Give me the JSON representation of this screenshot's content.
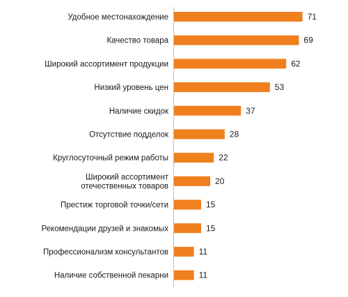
{
  "chart_data": {
    "type": "bar",
    "orientation": "horizontal",
    "title": "",
    "xlabel": "",
    "ylabel": "",
    "xlim": [
      0,
      75
    ],
    "grid": false,
    "legend": "none",
    "bar_color": "#F0801E",
    "categories": [
      [
        "Удобное местонахождение"
      ],
      [
        "Качество товара"
      ],
      [
        "Широкий ассортимент продукции"
      ],
      [
        "Низкий уровень цен"
      ],
      [
        "Наличие скидок"
      ],
      [
        "Отсутствие подделок"
      ],
      [
        "Круглосуточный режим работы"
      ],
      [
        "Широкий ассортимент",
        "отечественных товаров"
      ],
      [
        "Престиж торговой точки/сети"
      ],
      [
        "Рекомендации друзей и знакомых"
      ],
      [
        "Профессионализм консультантов"
      ],
      [
        "Наличие собственной пекарни"
      ]
    ],
    "values": [
      71,
      69,
      62,
      53,
      37,
      28,
      22,
      20,
      15,
      15,
      11,
      11
    ]
  }
}
